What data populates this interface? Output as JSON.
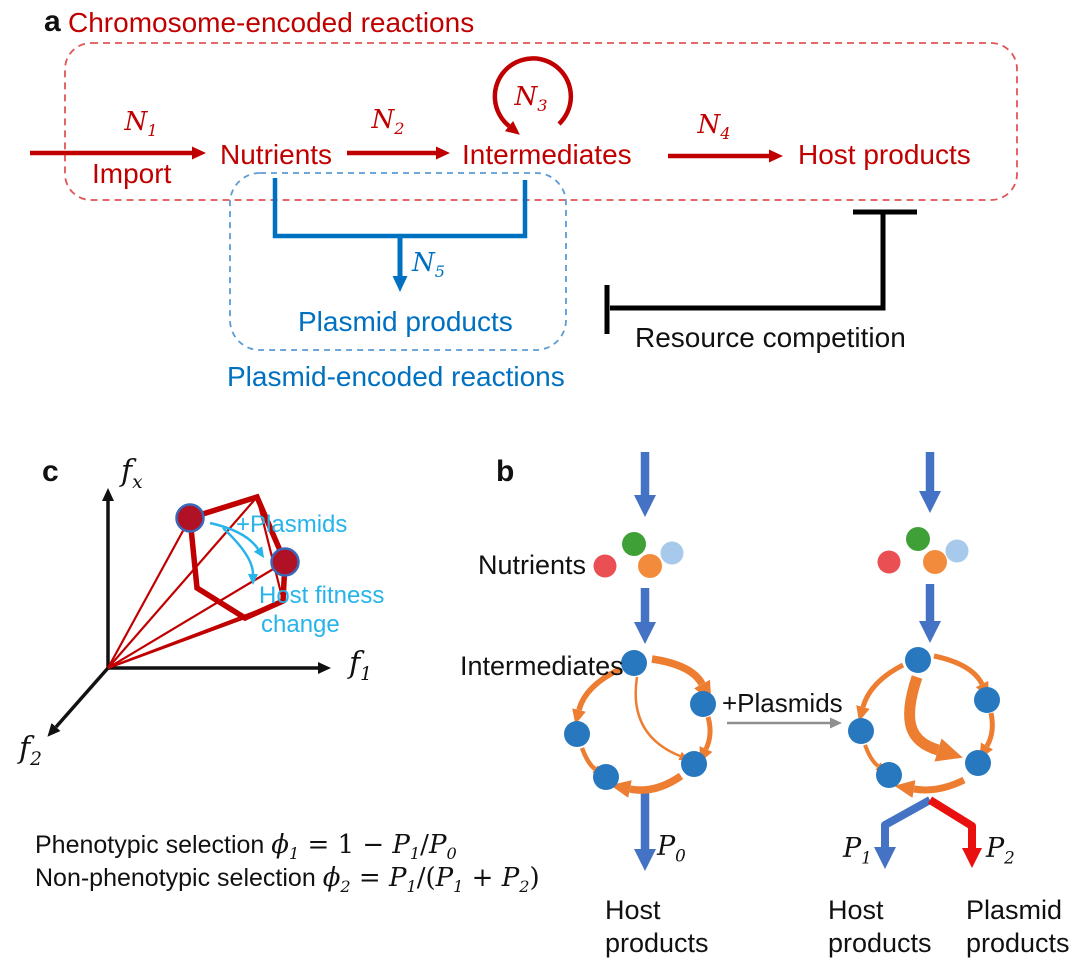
{
  "panel_a": {
    "label": "a",
    "title": "Chromosome-encoded reactions",
    "import_label": "Import",
    "nodes": {
      "nutrients": "Nutrients",
      "intermediates": "Intermediates",
      "host_products": "Host products",
      "plasmid_products": "Plasmid products"
    },
    "rates": {
      "n1": {
        "base": "N",
        "sub": "1"
      },
      "n2": {
        "base": "N",
        "sub": "2"
      },
      "n3": {
        "base": "N",
        "sub": "3"
      },
      "n4": {
        "base": "N",
        "sub": "4"
      },
      "n5": {
        "base": "N",
        "sub": "5"
      }
    },
    "plasmid_box_label": "Plasmid-encoded reactions",
    "resource_competition": "Resource competition"
  },
  "panel_c": {
    "label": "c",
    "axes": {
      "fx": {
        "base": "f",
        "sub": "x"
      },
      "f1": {
        "base": "f",
        "sub": "1"
      },
      "f2": {
        "base": "f",
        "sub": "2"
      }
    },
    "annotations": {
      "plasmids": "+Plasmids",
      "host_fitness_line1": "Host fitness",
      "host_fitness_line2": "change"
    }
  },
  "formulas": {
    "line1_label": "Phenotypic selection",
    "line1_math": [
      [
        "i",
        "ϕ"
      ],
      [
        "s",
        "1"
      ],
      [
        "up",
        " = 1 − "
      ],
      [
        "i",
        "P"
      ],
      [
        "s",
        "1"
      ],
      [
        "up",
        "/"
      ],
      [
        "i",
        "P"
      ],
      [
        "s",
        "0"
      ]
    ],
    "line2_label": "Non-phenotypic selection",
    "line2_math": [
      [
        "i",
        "ϕ"
      ],
      [
        "s",
        "2"
      ],
      [
        "up",
        " = "
      ],
      [
        "i",
        "P"
      ],
      [
        "s",
        "1"
      ],
      [
        "up",
        "/("
      ],
      [
        "i",
        "P"
      ],
      [
        "s",
        "1"
      ],
      [
        "up",
        " + "
      ],
      [
        "i",
        "P"
      ],
      [
        "s",
        "2"
      ],
      [
        "up",
        ")"
      ]
    ]
  },
  "panel_b": {
    "label": "b",
    "nutrients_label": "Nutrients",
    "intermediates_label": "Intermediates",
    "plasmids_label": "+Plasmids",
    "flux": {
      "p0": {
        "base": "P",
        "sub": "0"
      },
      "p1": {
        "base": "P",
        "sub": "1"
      },
      "p2": {
        "base": "P",
        "sub": "2"
      }
    },
    "labels": {
      "host_left": {
        "line1": "Host",
        "line2": "products"
      },
      "host_right": {
        "line1": "Host",
        "line2": "products"
      },
      "plasmid": {
        "line1": "Plasmid",
        "line2": "products"
      }
    }
  },
  "colors": {
    "chromosome_red": "#C00000",
    "red_dash": "#E05555",
    "plasmid_blue": "#0070C0",
    "blue_dash": "#5B9BD5",
    "cyan": "#27B4EA",
    "flow_blue": "#4472C4",
    "orange": "#ED7D31",
    "node_blue": "#2778BE",
    "bright_red": "#E8110F",
    "gray_arrow": "#8F8F8F",
    "dot_red": "#E94F53",
    "dot_green": "#3FA037",
    "dot_orange": "#F28B3B",
    "dot_lightblue": "#A6C9EC",
    "fitness_dot_red": "#B01125",
    "black": "#111111"
  }
}
